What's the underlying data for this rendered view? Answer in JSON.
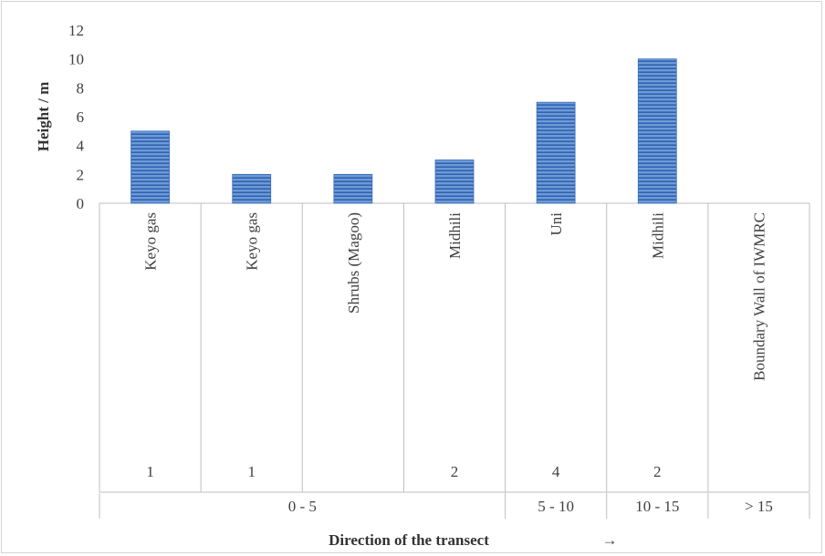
{
  "chart_data": {
    "type": "bar",
    "title": "",
    "ylabel": "Height / m",
    "xlabel": "Direction of the transect",
    "xlabel_arrow": "→",
    "ylim": [
      0,
      12
    ],
    "yticks": [
      0,
      2,
      4,
      6,
      8,
      10,
      12
    ],
    "grid": false,
    "legend": "none",
    "bar_color": "#4a7bc4",
    "categories": [
      "Keyo gas",
      "Keyo gas",
      "Shrubs (Magoo)",
      "Midhili",
      "Uni",
      "Midhili",
      "Boundary Wall of IWMRC"
    ],
    "values": [
      5,
      2,
      2,
      3,
      7,
      10,
      null
    ],
    "counts": [
      "1",
      "1",
      "",
      "2",
      "4",
      "2",
      ""
    ],
    "distance_groups": [
      {
        "label": "0 - 5",
        "span": 4
      },
      {
        "label": "5 - 10",
        "span": 1
      },
      {
        "label": "10 - 15",
        "span": 1
      },
      {
        "label": "> 15",
        "span": 1
      }
    ]
  }
}
